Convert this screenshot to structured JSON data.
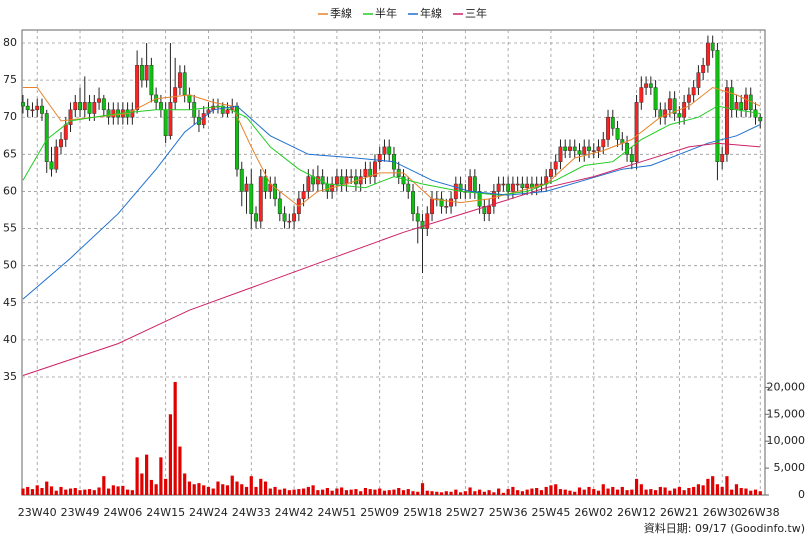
{
  "chart_data": {
    "type": "candlestick",
    "footer": "資料日期: 09/17 (Goodinfo.tw)",
    "xlim": [
      -0.2,
      156
    ],
    "xticks": [
      {
        "value": 3,
        "label": "23W40"
      },
      {
        "value": 12,
        "label": "23W49"
      },
      {
        "value": 21,
        "label": "24W06"
      },
      {
        "value": 30,
        "label": "24W15"
      },
      {
        "value": 39,
        "label": "24W24"
      },
      {
        "value": 48,
        "label": "24W33"
      },
      {
        "value": 57,
        "label": "24W42"
      },
      {
        "value": 66,
        "label": "24W51"
      },
      {
        "value": 75,
        "label": "25W09"
      },
      {
        "value": 84,
        "label": "25W18"
      },
      {
        "value": 93,
        "label": "25W27"
      },
      {
        "value": 102,
        "label": "25W36"
      },
      {
        "value": 111,
        "label": "25W45"
      },
      {
        "value": 120,
        "label": "26W02"
      },
      {
        "value": 129,
        "label": "26W12"
      },
      {
        "value": 138,
        "label": "26W21"
      },
      {
        "value": 147,
        "label": "26W30"
      },
      {
        "value": 155,
        "label": "26W38"
      }
    ],
    "ylim": [
      35,
      81.75
    ],
    "yticks": [
      35,
      40,
      45,
      50,
      55,
      60,
      65,
      70,
      75,
      80
    ],
    "y2lim": [
      0,
      21000
    ],
    "y2ticks": [
      0,
      {
        "value": 5000,
        "label": "5,000"
      },
      {
        "value": 10000,
        "label": "10,000"
      },
      {
        "value": 15000,
        "label": "15,000"
      },
      {
        "value": 20000,
        "label": "20,000"
      }
    ],
    "grid": true,
    "up_color": "#ff2020",
    "down_color": "#10c010",
    "volume_color": "#e00000",
    "open": [
      72,
      71.5,
      71,
      71,
      71.5,
      70.5,
      64,
      63,
      66,
      67,
      69,
      71,
      72,
      71,
      72,
      70.5,
      72,
      72.5,
      71,
      70,
      71,
      70,
      71,
      70,
      71,
      77,
      75,
      77,
      73,
      72,
      71,
      67.5,
      72,
      74,
      76,
      73,
      72,
      70,
      69,
      70.5,
      71,
      71.5,
      71.5,
      70.5,
      71,
      71.5,
      63,
      60,
      61,
      57,
      56,
      62,
      60,
      61,
      59,
      57,
      56,
      56,
      57,
      59,
      60,
      62,
      61,
      62,
      61,
      60,
      61,
      62,
      61,
      62,
      62,
      61,
      62,
      63,
      62,
      64,
      65,
      66,
      65,
      63,
      62,
      61,
      60,
      57,
      56,
      55,
      57,
      59,
      59,
      58,
      58,
      59,
      61,
      60,
      60,
      62,
      60,
      58,
      57,
      58,
      60,
      61,
      61,
      60,
      61,
      61,
      60.5,
      61,
      60.5,
      61,
      61,
      62,
      63,
      64,
      66,
      65.5,
      66,
      65.5,
      65,
      66,
      65.5,
      65.5,
      66,
      67,
      70,
      68.5,
      67,
      66.5,
      65,
      64,
      72,
      74,
      74.5,
      74,
      71,
      70,
      71,
      72.5,
      70.5,
      70,
      72,
      73,
      74,
      76,
      77,
      80,
      79,
      64,
      65,
      74,
      71,
      72,
      71,
      73,
      71,
      70
    ],
    "high": [
      73,
      72.5,
      72,
      72.5,
      72.5,
      71,
      66,
      67,
      68,
      70,
      72,
      73,
      74,
      75.5,
      73,
      73,
      74,
      73,
      72,
      72,
      72,
      72,
      72,
      72,
      79,
      78,
      80,
      78,
      74,
      73,
      72,
      80,
      78,
      77,
      77,
      74,
      73,
      71,
      71.5,
      72,
      72.5,
      72.5,
      72,
      72,
      72.5,
      72,
      64,
      62,
      63,
      58,
      63,
      63,
      62,
      62,
      60,
      58,
      57,
      58,
      60,
      61,
      63,
      63,
      63.5,
      63,
      62,
      62,
      63,
      63,
      63,
      63,
      63,
      63,
      64,
      64,
      65,
      66,
      67,
      67,
      66,
      64,
      63,
      62,
      61,
      58,
      57,
      58,
      60,
      60,
      60,
      59,
      60,
      62,
      62,
      61,
      63,
      63,
      61,
      59,
      59,
      61,
      62,
      62,
      62,
      62,
      62,
      62,
      62,
      62,
      62,
      62,
      63,
      64,
      65,
      67,
      67,
      67,
      67,
      66.5,
      67,
      67,
      66.5,
      67,
      68,
      71,
      71,
      69.5,
      68,
      67.5,
      66,
      73,
      75.5,
      75.5,
      75.5,
      75,
      72,
      72,
      73.5,
      73.5,
      71.5,
      73,
      74,
      75,
      77,
      78,
      81,
      81,
      80,
      66,
      75,
      75,
      73,
      73,
      74,
      74,
      72,
      70.5
    ],
    "low": [
      70.5,
      70,
      70,
      70,
      69.5,
      62.5,
      62,
      62.5,
      65,
      66,
      68,
      70,
      70,
      70,
      69.5,
      69.5,
      71,
      70,
      69,
      69,
      69,
      69,
      69,
      69,
      70.5,
      74,
      74,
      72,
      71,
      70,
      66.5,
      67,
      71,
      73,
      72,
      71,
      69,
      68,
      68.5,
      70,
      70.5,
      70.5,
      70,
      70,
      70.5,
      62,
      58,
      57,
      55,
      55,
      55,
      59,
      59,
      58,
      56,
      55,
      55,
      55,
      56,
      58,
      59,
      60,
      60,
      60,
      59,
      59,
      60,
      60,
      60,
      61,
      60,
      60,
      61,
      61,
      61,
      63,
      64,
      64,
      62,
      61,
      60,
      59,
      56,
      53,
      49,
      54,
      56,
      58,
      57,
      57,
      57,
      58,
      59,
      59,
      59,
      59,
      57,
      56,
      56,
      57,
      59,
      60,
      59,
      59,
      60,
      59.5,
      59.5,
      59.5,
      59.5,
      60,
      60,
      61,
      62,
      63,
      64.5,
      64.5,
      64.5,
      64,
      64,
      64.5,
      64.5,
      64.5,
      65,
      66,
      67.5,
      66,
      65.5,
      64,
      63,
      63,
      71,
      73,
      73,
      70,
      69,
      69,
      70,
      69.5,
      69,
      69,
      71,
      72,
      73,
      75,
      76,
      78,
      61.5,
      63,
      64,
      70,
      70,
      70,
      70,
      70,
      69,
      68.5
    ],
    "close": [
      71.5,
      71,
      71,
      71.5,
      70.5,
      64,
      63,
      66,
      67,
      69,
      71,
      72,
      71,
      72,
      70.5,
      72,
      72.5,
      71,
      70,
      71,
      70,
      71,
      70,
      71,
      77,
      75,
      77,
      73,
      72,
      71,
      67.5,
      72,
      74,
      76,
      73,
      72,
      70,
      69,
      70.5,
      71,
      71.5,
      71.5,
      70.5,
      71,
      71.5,
      63,
      60,
      61,
      57,
      56,
      62,
      60,
      61,
      59,
      57,
      56,
      56,
      57,
      59,
      60,
      62,
      61,
      62,
      61,
      60,
      61,
      62,
      61,
      62,
      62,
      61,
      62,
      63,
      62,
      64,
      65,
      66,
      65,
      63,
      62,
      61,
      60,
      57,
      56,
      55,
      57,
      59,
      59,
      58,
      58,
      59,
      61,
      60,
      60,
      62,
      60,
      58,
      57,
      58,
      60,
      61,
      61,
      60,
      61,
      61,
      60.5,
      61,
      60.5,
      61,
      61,
      62,
      63,
      64,
      66,
      65.5,
      66,
      65.5,
      65,
      66,
      65.5,
      65.5,
      66,
      67,
      70,
      68.5,
      67,
      66.5,
      65,
      64,
      72,
      74,
      74.5,
      74,
      71,
      70,
      71,
      72.5,
      70.5,
      70,
      72,
      73,
      74,
      76,
      77,
      80,
      79,
      64,
      65,
      74,
      71,
      72,
      71,
      73,
      71,
      70,
      69.5
    ],
    "volume": [
      1200,
      1500,
      1100,
      1800,
      1300,
      2500,
      1600,
      800,
      1500,
      1000,
      1200,
      1300,
      900,
      1000,
      1100,
      900,
      1400,
      3500,
      1200,
      1800,
      1600,
      1700,
      1000,
      900,
      7000,
      4000,
      7500,
      2800,
      2000,
      7000,
      3000,
      15000,
      21000,
      9000,
      4000,
      2500,
      2000,
      2200,
      1800,
      1500,
      1200,
      2500,
      2000,
      1800,
      3600,
      2500,
      2000,
      1500,
      3500,
      1500,
      3000,
      2500,
      1200,
      1500,
      1000,
      1200,
      900,
      1000,
      1100,
      1200,
      1500,
      1800,
      900,
      1000,
      1300,
      800,
      1200,
      1400,
      900,
      1000,
      1100,
      700,
      1300,
      1100,
      1000,
      1200,
      800,
      900,
      1000,
      1300,
      900,
      1100,
      700,
      600,
      2200,
      800,
      700,
      600,
      500,
      700,
      600,
      1000,
      500,
      700,
      1400,
      700,
      1000,
      600,
      900,
      500,
      1200,
      400,
      1100,
      1500,
      900,
      700,
      1000,
      1200,
      1300,
      900,
      1500,
      1800,
      2000,
      1100,
      1000,
      800,
      600,
      1400,
      1000,
      1500,
      1100,
      800,
      2000,
      1200,
      1500,
      1000,
      1500,
      900,
      1000,
      3000,
      2000,
      1000,
      1100,
      900,
      1500,
      1400,
      800,
      1200,
      1500,
      900,
      1300,
      1500,
      2000,
      1800,
      3000,
      3500,
      2000,
      1500,
      3500,
      1000,
      2000,
      1300,
      1200,
      800,
      1000,
      700
    ],
    "series": [
      {
        "name": "季線",
        "color": "#e8822a",
        "x": [
          0,
          3,
          8,
          15,
          22,
          28,
          35,
          40,
          44,
          48,
          52,
          58,
          62,
          68,
          75,
          80,
          86,
          92,
          98,
          104,
          110,
          116,
          122,
          128,
          134,
          140,
          145,
          150,
          155
        ],
        "values": [
          74,
          74,
          69.5,
          70,
          70.5,
          72.5,
          73,
          72,
          71.5,
          66,
          61,
          58,
          60,
          61,
          62.5,
          62.5,
          59,
          58.5,
          59,
          60,
          61,
          64.5,
          65.5,
          67,
          70,
          71.5,
          74,
          73,
          71.5
        ]
      },
      {
        "name": "半年",
        "color": "#22cc22",
        "x": [
          0,
          5,
          10,
          20,
          28,
          35,
          42,
          47,
          52,
          58,
          64,
          72,
          78,
          84,
          92,
          100,
          106,
          112,
          118,
          124,
          130,
          136,
          142,
          146,
          150,
          155
        ],
        "values": [
          61.5,
          67,
          69.5,
          70.5,
          71,
          71,
          71.5,
          70,
          66,
          63,
          61,
          60.5,
          62,
          61,
          60,
          59.5,
          60,
          61.5,
          63.5,
          64,
          67,
          69,
          70,
          71.5,
          71,
          70.5
        ]
      },
      {
        "name": "年線",
        "color": "#1e6fd0",
        "x": [
          0,
          10,
          20,
          28,
          34,
          40,
          45,
          52,
          60,
          70,
          78,
          86,
          94,
          102,
          110,
          118,
          126,
          132,
          138,
          144,
          150,
          155
        ],
        "values": [
          45.5,
          51,
          57,
          63,
          68,
          71,
          71.5,
          67.5,
          65,
          64.5,
          64,
          61.5,
          60,
          59.5,
          60,
          61.5,
          63,
          63.5,
          65,
          66.5,
          67.5,
          69
        ]
      },
      {
        "name": "三年",
        "color": "#cc2266",
        "x": [
          0,
          20,
          35,
          50,
          65,
          80,
          90,
          100,
          110,
          120,
          130,
          140,
          146,
          155
        ],
        "values": [
          35.2,
          39.5,
          44,
          47.5,
          51,
          54.5,
          56.5,
          58.5,
          60.5,
          62,
          64,
          66,
          66.5,
          66
        ]
      }
    ]
  }
}
